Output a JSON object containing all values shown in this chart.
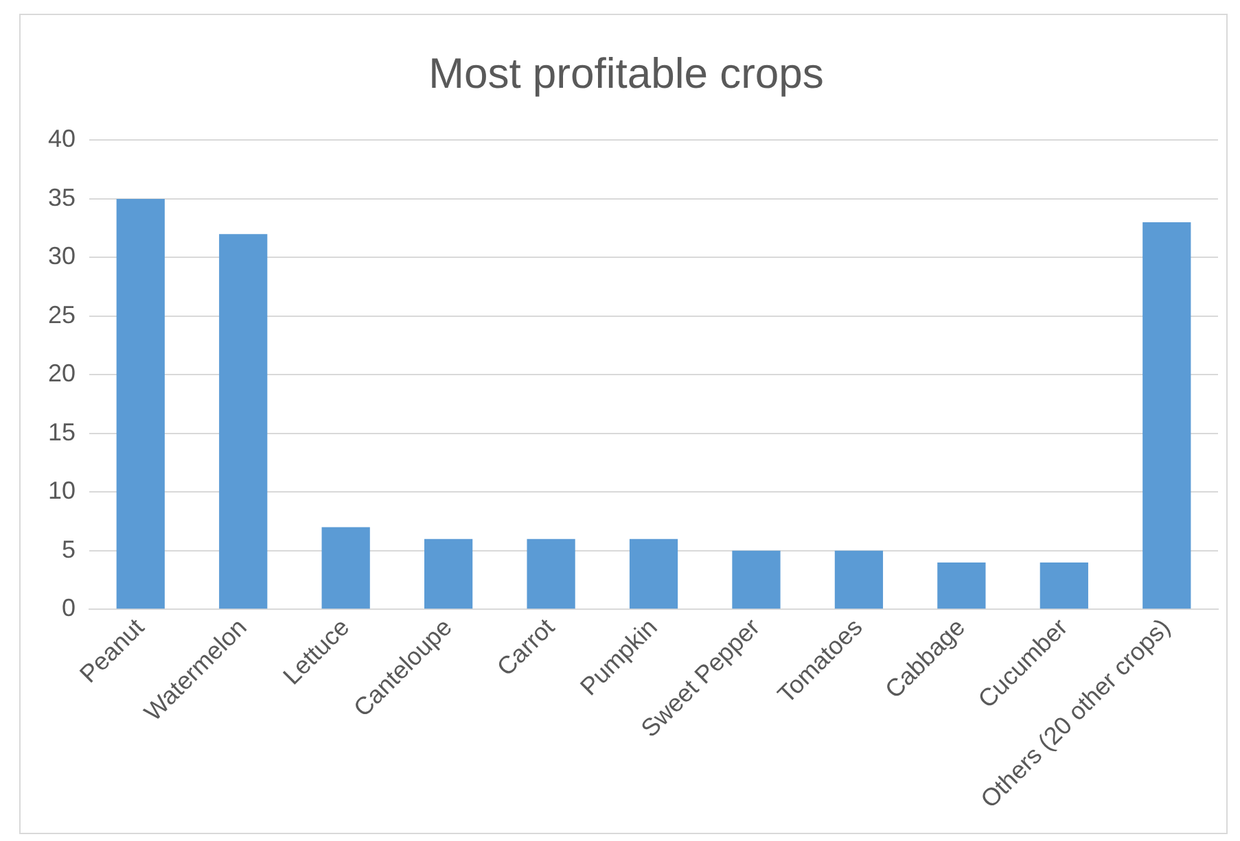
{
  "chart_data": {
    "type": "bar",
    "title": "Most profitable crops",
    "categories": [
      "Peanut",
      "Watermelon",
      "Lettuce",
      "Canteloupe",
      "Carrot",
      "Pumpkin",
      "Sweet Pepper",
      "Tomatoes",
      "Cabbage",
      "Cucumber",
      "Others (20 other crops)"
    ],
    "values": [
      35,
      32,
      7,
      6,
      6,
      6,
      5,
      5,
      4,
      4,
      33
    ],
    "color": "#5b9bd5",
    "ylim": [
      0,
      40
    ],
    "yticks": [
      0,
      5,
      10,
      15,
      20,
      25,
      30,
      35,
      40
    ],
    "grid": "y",
    "legend": false
  }
}
